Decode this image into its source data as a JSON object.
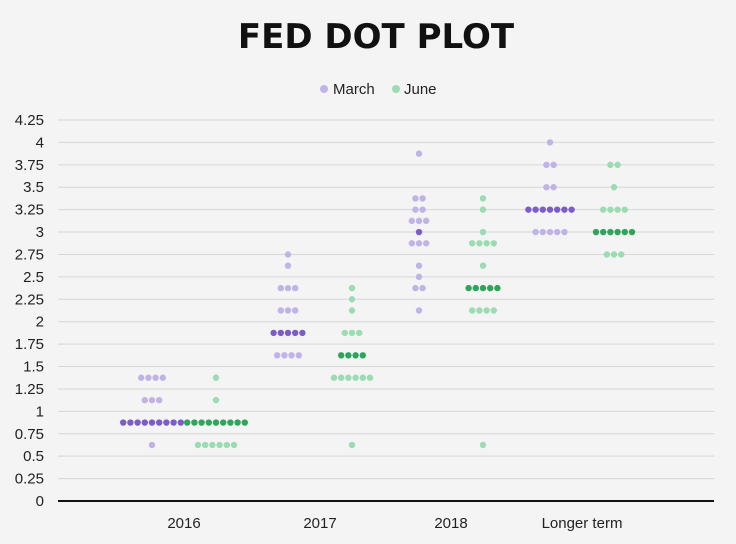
{
  "chart_data": {
    "type": "scatter",
    "title": "FED DOT PLOT",
    "legend_position": "top-center",
    "grid": true,
    "categories": [
      "2016",
      "2017",
      "2018",
      "Longer term"
    ],
    "ylim": [
      0,
      4.25
    ],
    "yticks": [
      0,
      0.25,
      0.5,
      0.75,
      1,
      1.25,
      1.5,
      1.75,
      2,
      2.25,
      2.5,
      2.75,
      3,
      3.25,
      3.5,
      3.75,
      4,
      4.25
    ],
    "ytick_labels": [
      "0",
      "0.25",
      "0.5",
      "0.75",
      "1",
      "1.25",
      "1.5",
      "1.75",
      "2",
      "2.25",
      "2.5",
      "2.75",
      "3",
      "3.25",
      "3.5",
      "3.75",
      "4",
      "4.25"
    ],
    "colors": {
      "march_light": "#c0b3e8",
      "march_median": "#7c5cc8",
      "june_light": "#9bdcb2",
      "june_median": "#2fa55c"
    },
    "series": [
      {
        "name": "March",
        "values": [
          [
            {
              "rate": 1.375,
              "count": 4
            },
            {
              "rate": 1.125,
              "count": 3
            },
            {
              "rate": 0.875,
              "count": 9,
              "median": true
            },
            {
              "rate": 0.625,
              "count": 1
            }
          ],
          [
            {
              "rate": 2.75,
              "count": 1
            },
            {
              "rate": 2.625,
              "count": 1
            },
            {
              "rate": 2.375,
              "count": 3
            },
            {
              "rate": 2.125,
              "count": 3
            },
            {
              "rate": 1.875,
              "count": 5,
              "median": true
            },
            {
              "rate": 1.625,
              "count": 4
            }
          ],
          [
            {
              "rate": 3.875,
              "count": 1
            },
            {
              "rate": 3.375,
              "count": 2
            },
            {
              "rate": 3.25,
              "count": 2
            },
            {
              "rate": 3.125,
              "count": 3
            },
            {
              "rate": 3.0,
              "count": 1,
              "median": true
            },
            {
              "rate": 2.875,
              "count": 3
            },
            {
              "rate": 2.625,
              "count": 1
            },
            {
              "rate": 2.5,
              "count": 1
            },
            {
              "rate": 2.375,
              "count": 2
            },
            {
              "rate": 2.125,
              "count": 1
            }
          ],
          [
            {
              "rate": 4.0,
              "count": 1
            },
            {
              "rate": 3.75,
              "count": 2
            },
            {
              "rate": 3.5,
              "count": 2
            },
            {
              "rate": 3.25,
              "count": 7,
              "median": true
            },
            {
              "rate": 3.0,
              "count": 5
            }
          ]
        ]
      },
      {
        "name": "June",
        "values": [
          [
            {
              "rate": 1.375,
              "count": 1
            },
            {
              "rate": 1.125,
              "count": 1
            },
            {
              "rate": 0.875,
              "count": 9,
              "median": true
            },
            {
              "rate": 0.625,
              "count": 6
            }
          ],
          [
            {
              "rate": 2.375,
              "count": 1
            },
            {
              "rate": 2.25,
              "count": 1
            },
            {
              "rate": 2.125,
              "count": 1
            },
            {
              "rate": 1.875,
              "count": 3
            },
            {
              "rate": 1.625,
              "count": 4,
              "median": true
            },
            {
              "rate": 1.375,
              "count": 6
            },
            {
              "rate": 0.625,
              "count": 1
            }
          ],
          [
            {
              "rate": 3.375,
              "count": 1
            },
            {
              "rate": 3.25,
              "count": 1
            },
            {
              "rate": 3.0,
              "count": 1
            },
            {
              "rate": 2.875,
              "count": 4
            },
            {
              "rate": 2.625,
              "count": 1
            },
            {
              "rate": 2.375,
              "count": 5,
              "median": true
            },
            {
              "rate": 2.125,
              "count": 4
            },
            {
              "rate": 0.625,
              "count": 1
            }
          ],
          [
            {
              "rate": 3.75,
              "count": 2
            },
            {
              "rate": 3.5,
              "count": 1
            },
            {
              "rate": 3.25,
              "count": 4
            },
            {
              "rate": 3.0,
              "count": 6,
              "median": true
            },
            {
              "rate": 2.75,
              "count": 3
            }
          ]
        ]
      }
    ]
  }
}
